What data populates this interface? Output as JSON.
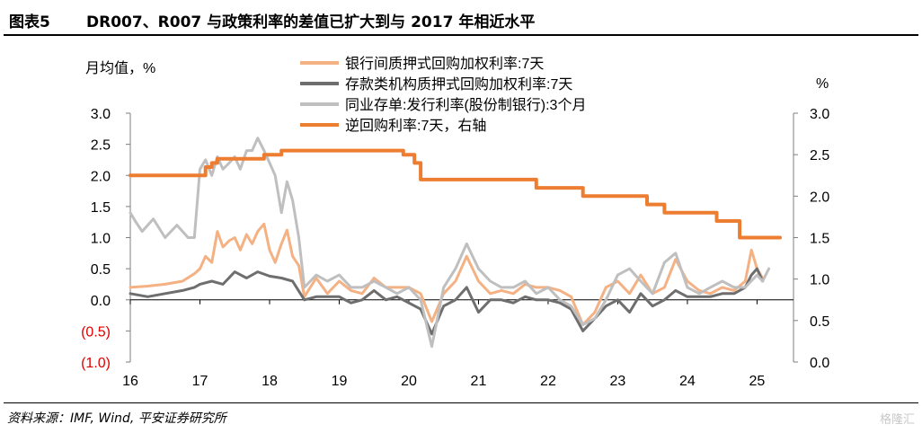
{
  "header": {
    "figure_no": "图表5",
    "title": "DR007、R007 与政策利率的差值已扩大到与 2017 年相近水平"
  },
  "footer": {
    "source": "资料来源：IMF, Wind, 平安证券研究所",
    "watermark": "格隆汇"
  },
  "chart_data": {
    "type": "line",
    "ylabel_left": "月均值，%",
    "ylabel_right": "%",
    "xlim": [
      2016,
      2025.33
    ],
    "ylim_left": [
      -1.0,
      3.0
    ],
    "ylim_right": [
      0.0,
      3.0
    ],
    "x_ticks": [
      16,
      17,
      18,
      19,
      20,
      21,
      22,
      23,
      24,
      25
    ],
    "y_left_ticks": [
      "3.0",
      "2.5",
      "2.0",
      "1.5",
      "1.0",
      "0.5",
      "0.0",
      "(0.5)",
      "(1.0)"
    ],
    "y_left_tick_values": [
      3.0,
      2.5,
      2.0,
      1.5,
      1.0,
      0.5,
      0.0,
      -0.5,
      -1.0
    ],
    "y_right_ticks": [
      "3.0",
      "2.5",
      "2.0",
      "1.5",
      "1.0",
      "0.5",
      "0.0"
    ],
    "y_right_tick_values": [
      3.0,
      2.5,
      2.0,
      1.5,
      1.0,
      0.5,
      0.0
    ],
    "negative_label_color": "#e00000",
    "legend_position": "top-center",
    "series": [
      {
        "name": "银行间质押式回购加权利率:7天",
        "axis": "left",
        "color": "#f4b183",
        "width": 3,
        "points": [
          [
            2016.0,
            0.2
          ],
          [
            2016.25,
            0.22
          ],
          [
            2016.5,
            0.25
          ],
          [
            2016.75,
            0.3
          ],
          [
            2016.92,
            0.42
          ],
          [
            2017.0,
            0.5
          ],
          [
            2017.08,
            0.7
          ],
          [
            2017.17,
            0.6
          ],
          [
            2017.25,
            1.1
          ],
          [
            2017.33,
            0.85
          ],
          [
            2017.42,
            0.95
          ],
          [
            2017.5,
            1.0
          ],
          [
            2017.58,
            0.8
          ],
          [
            2017.67,
            1.05
          ],
          [
            2017.75,
            0.9
          ],
          [
            2017.83,
            1.1
          ],
          [
            2017.92,
            1.22
          ],
          [
            2018.0,
            0.8
          ],
          [
            2018.08,
            0.6
          ],
          [
            2018.17,
            0.9
          ],
          [
            2018.25,
            1.12
          ],
          [
            2018.33,
            0.7
          ],
          [
            2018.42,
            0.55
          ],
          [
            2018.5,
            0.05
          ],
          [
            2018.67,
            0.35
          ],
          [
            2018.83,
            0.1
          ],
          [
            2019.0,
            0.3
          ],
          [
            2019.17,
            0.15
          ],
          [
            2019.33,
            0.1
          ],
          [
            2019.5,
            0.35
          ],
          [
            2019.67,
            0.2
          ],
          [
            2019.83,
            0.2
          ],
          [
            2020.0,
            0.2
          ],
          [
            2020.17,
            0.1
          ],
          [
            2020.33,
            -0.35
          ],
          [
            2020.5,
            0.1
          ],
          [
            2020.67,
            0.3
          ],
          [
            2020.83,
            0.7
          ],
          [
            2021.0,
            0.3
          ],
          [
            2021.17,
            0.1
          ],
          [
            2021.33,
            0.15
          ],
          [
            2021.5,
            0.1
          ],
          [
            2021.67,
            0.25
          ],
          [
            2021.83,
            0.2
          ],
          [
            2022.0,
            0.2
          ],
          [
            2022.17,
            0.15
          ],
          [
            2022.33,
            0.05
          ],
          [
            2022.5,
            -0.4
          ],
          [
            2022.67,
            -0.2
          ],
          [
            2022.83,
            0.2
          ],
          [
            2023.0,
            0.3
          ],
          [
            2023.17,
            0.1
          ],
          [
            2023.33,
            0.4
          ],
          [
            2023.5,
            0.1
          ],
          [
            2023.67,
            0.2
          ],
          [
            2023.83,
            0.65
          ],
          [
            2024.0,
            0.3
          ],
          [
            2024.17,
            0.15
          ],
          [
            2024.33,
            0.1
          ],
          [
            2024.5,
            0.2
          ],
          [
            2024.67,
            0.15
          ],
          [
            2024.83,
            0.3
          ],
          [
            2024.92,
            0.8
          ],
          [
            2025.0,
            0.5
          ],
          [
            2025.08,
            0.35
          ]
        ]
      },
      {
        "name": "存款类机构质押式回购加权利率:7天",
        "axis": "left",
        "color": "#6e6e6e",
        "width": 3,
        "points": [
          [
            2016.0,
            0.1
          ],
          [
            2016.25,
            0.05
          ],
          [
            2016.5,
            0.1
          ],
          [
            2016.75,
            0.15
          ],
          [
            2016.92,
            0.2
          ],
          [
            2017.0,
            0.25
          ],
          [
            2017.17,
            0.3
          ],
          [
            2017.33,
            0.25
          ],
          [
            2017.5,
            0.45
          ],
          [
            2017.67,
            0.35
          ],
          [
            2017.83,
            0.45
          ],
          [
            2018.0,
            0.38
          ],
          [
            2018.17,
            0.35
          ],
          [
            2018.33,
            0.3
          ],
          [
            2018.5,
            0.0
          ],
          [
            2018.67,
            0.05
          ],
          [
            2018.83,
            0.05
          ],
          [
            2019.0,
            0.05
          ],
          [
            2019.17,
            -0.05
          ],
          [
            2019.33,
            0.0
          ],
          [
            2019.5,
            0.15
          ],
          [
            2019.67,
            0.0
          ],
          [
            2019.83,
            0.05
          ],
          [
            2020.0,
            -0.05
          ],
          [
            2020.17,
            -0.15
          ],
          [
            2020.33,
            -0.55
          ],
          [
            2020.5,
            -0.1
          ],
          [
            2020.67,
            0.0
          ],
          [
            2020.83,
            0.2
          ],
          [
            2021.0,
            -0.2
          ],
          [
            2021.17,
            0.0
          ],
          [
            2021.33,
            0.0
          ],
          [
            2021.5,
            -0.05
          ],
          [
            2021.67,
            0.05
          ],
          [
            2021.83,
            0.0
          ],
          [
            2022.0,
            0.0
          ],
          [
            2022.17,
            -0.05
          ],
          [
            2022.33,
            -0.15
          ],
          [
            2022.5,
            -0.5
          ],
          [
            2022.67,
            -0.3
          ],
          [
            2022.83,
            -0.1
          ],
          [
            2023.0,
            0.0
          ],
          [
            2023.17,
            -0.2
          ],
          [
            2023.33,
            0.1
          ],
          [
            2023.5,
            -0.1
          ],
          [
            2023.67,
            0.0
          ],
          [
            2023.83,
            0.15
          ],
          [
            2024.0,
            0.05
          ],
          [
            2024.17,
            0.05
          ],
          [
            2024.33,
            0.05
          ],
          [
            2024.5,
            0.1
          ],
          [
            2024.67,
            0.1
          ],
          [
            2024.83,
            0.2
          ],
          [
            2024.92,
            0.4
          ],
          [
            2025.0,
            0.5
          ],
          [
            2025.08,
            0.3
          ]
        ]
      },
      {
        "name": "同业存单:发行利率(股份制银行):3个月",
        "axis": "left",
        "color": "#bfbfbf",
        "width": 3,
        "points": [
          [
            2016.0,
            1.4
          ],
          [
            2016.08,
            1.25
          ],
          [
            2016.17,
            1.1
          ],
          [
            2016.33,
            1.3
          ],
          [
            2016.5,
            1.0
          ],
          [
            2016.67,
            1.2
          ],
          [
            2016.83,
            1.0
          ],
          [
            2016.92,
            1.0
          ],
          [
            2017.0,
            2.1
          ],
          [
            2017.08,
            2.25
          ],
          [
            2017.17,
            2.0
          ],
          [
            2017.25,
            2.3
          ],
          [
            2017.33,
            2.1
          ],
          [
            2017.42,
            2.2
          ],
          [
            2017.5,
            2.3
          ],
          [
            2017.58,
            2.1
          ],
          [
            2017.67,
            2.4
          ],
          [
            2017.75,
            2.4
          ],
          [
            2017.83,
            2.6
          ],
          [
            2017.92,
            2.4
          ],
          [
            2018.0,
            2.2
          ],
          [
            2018.08,
            2.0
          ],
          [
            2018.17,
            1.4
          ],
          [
            2018.25,
            1.9
          ],
          [
            2018.33,
            1.6
          ],
          [
            2018.42,
            1.0
          ],
          [
            2018.5,
            0.2
          ],
          [
            2018.67,
            0.4
          ],
          [
            2018.83,
            0.3
          ],
          [
            2019.0,
            0.4
          ],
          [
            2019.17,
            0.2
          ],
          [
            2019.33,
            0.2
          ],
          [
            2019.5,
            0.3
          ],
          [
            2019.67,
            0.2
          ],
          [
            2019.83,
            0.1
          ],
          [
            2020.0,
            0.2
          ],
          [
            2020.17,
            0.0
          ],
          [
            2020.33,
            -0.75
          ],
          [
            2020.5,
            0.2
          ],
          [
            2020.67,
            0.5
          ],
          [
            2020.83,
            0.9
          ],
          [
            2021.0,
            0.5
          ],
          [
            2021.17,
            0.3
          ],
          [
            2021.33,
            0.2
          ],
          [
            2021.5,
            0.2
          ],
          [
            2021.67,
            0.3
          ],
          [
            2021.83,
            0.1
          ],
          [
            2022.0,
            0.2
          ],
          [
            2022.17,
            0.0
          ],
          [
            2022.33,
            -0.1
          ],
          [
            2022.5,
            -0.4
          ],
          [
            2022.67,
            -0.3
          ],
          [
            2022.83,
            0.0
          ],
          [
            2023.0,
            0.4
          ],
          [
            2023.17,
            0.5
          ],
          [
            2023.33,
            0.3
          ],
          [
            2023.5,
            0.1
          ],
          [
            2023.67,
            0.6
          ],
          [
            2023.83,
            0.75
          ],
          [
            2024.0,
            0.2
          ],
          [
            2024.17,
            0.1
          ],
          [
            2024.33,
            0.2
          ],
          [
            2024.5,
            0.3
          ],
          [
            2024.67,
            0.2
          ],
          [
            2024.83,
            0.2
          ],
          [
            2025.0,
            0.4
          ],
          [
            2025.08,
            0.3
          ],
          [
            2025.17,
            0.5
          ]
        ]
      },
      {
        "name": "逆回购利率:7天，右轴",
        "axis": "right",
        "color": "#ed7d31",
        "width": 4,
        "step": true,
        "points": [
          [
            2016.0,
            2.25
          ],
          [
            2017.08,
            2.35
          ],
          [
            2017.17,
            2.4
          ],
          [
            2017.25,
            2.45
          ],
          [
            2017.92,
            2.5
          ],
          [
            2018.17,
            2.55
          ],
          [
            2019.92,
            2.5
          ],
          [
            2020.08,
            2.4
          ],
          [
            2020.17,
            2.2
          ],
          [
            2021.83,
            2.1
          ],
          [
            2022.5,
            2.0
          ],
          [
            2023.42,
            1.9
          ],
          [
            2023.67,
            1.8
          ],
          [
            2024.42,
            1.7
          ],
          [
            2024.75,
            1.5
          ],
          [
            2025.33,
            1.5
          ]
        ]
      }
    ]
  }
}
